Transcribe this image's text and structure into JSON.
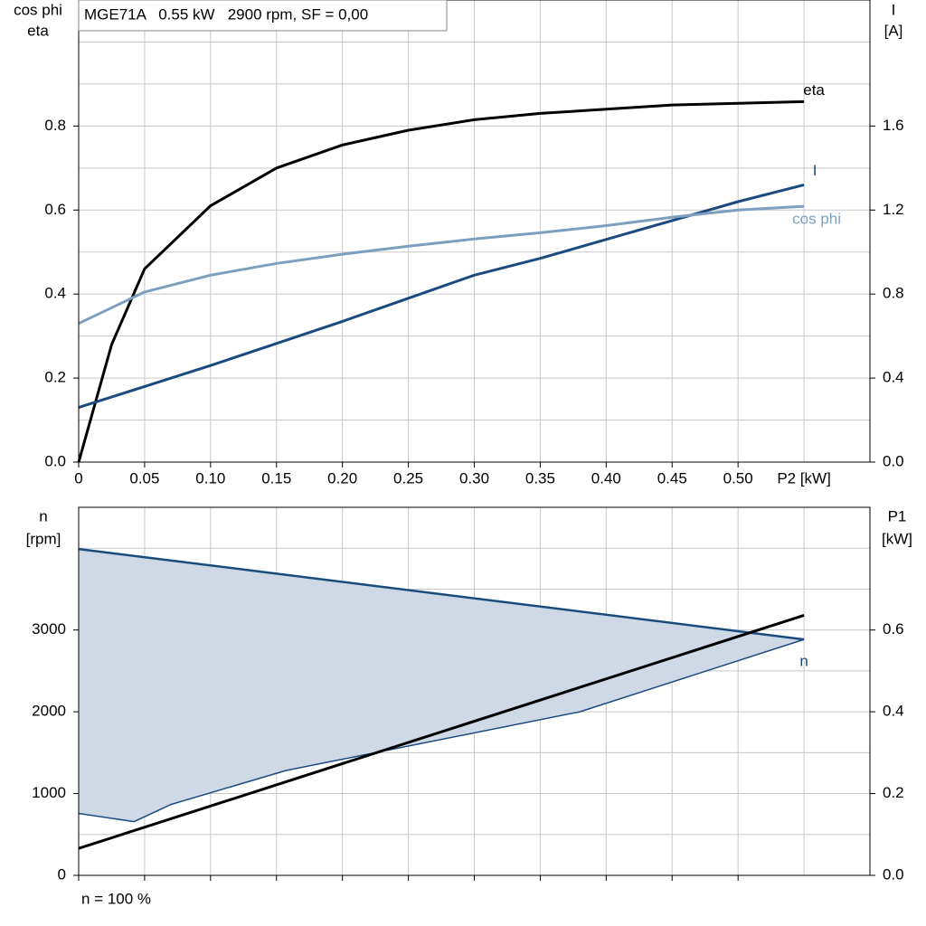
{
  "chart_data": [
    {
      "type": "line",
      "info_box": "MGE71A   0.55 kW   2900 rpm, SF = 0,00",
      "y_label_lines": [
        "cos phi",
        "eta"
      ],
      "y2_label_lines": [
        "I",
        "[A]"
      ],
      "x_label": "P2 [kW]",
      "xlim": [
        0,
        0.6
      ],
      "xticks": [
        0,
        0.05,
        {
          "value": 0.1,
          "label": "0.10"
        },
        0.15,
        {
          "value": 0.2,
          "label": "0.20"
        },
        0.25,
        {
          "value": 0.3,
          "label": "0.30"
        },
        0.35,
        {
          "value": 0.4,
          "label": "0.40"
        },
        0.45,
        {
          "value": 0.5,
          "label": "0.50"
        }
      ],
      "ylim": [
        0,
        1.1
      ],
      "yticks": [
        {
          "value": 0,
          "label": "0.0"
        },
        0.2,
        0.4,
        0.6,
        0.8
      ],
      "y2lim": [
        0,
        2.2
      ],
      "y2ticks": [
        {
          "value": 0,
          "label": "0.0"
        },
        0.4,
        0.8,
        1.2,
        1.6
      ],
      "grid": true,
      "series": [
        {
          "name": "eta",
          "color": "#000000",
          "x": [
            0,
            0.025,
            0.05,
            0.1,
            0.15,
            0.2,
            0.25,
            0.3,
            0.35,
            0.4,
            0.45,
            0.5,
            0.55
          ],
          "values": [
            0,
            0.28,
            0.46,
            0.61,
            0.7,
            0.755,
            0.79,
            0.815,
            0.83,
            0.84,
            0.85,
            0.854,
            0.858
          ]
        },
        {
          "name": "I",
          "color": "#1a4a80",
          "axis": "y2",
          "x": [
            0,
            0.05,
            0.1,
            0.15,
            0.2,
            0.25,
            0.3,
            0.35,
            0.4,
            0.45,
            0.5,
            0.55
          ],
          "values": [
            0.26,
            0.36,
            0.46,
            0.565,
            0.67,
            0.78,
            0.89,
            0.97,
            1.06,
            1.15,
            1.24,
            1.32
          ]
        },
        {
          "name": "cos phi",
          "color": "#7d9fbf",
          "x": [
            0,
            0.05,
            0.1,
            0.15,
            0.2,
            0.25,
            0.3,
            0.35,
            0.4,
            0.45,
            0.5,
            0.55
          ],
          "values": [
            0.33,
            0.405,
            0.445,
            0.473,
            0.495,
            0.514,
            0.531,
            0.546,
            0.563,
            0.583,
            0.6,
            0.609
          ]
        }
      ]
    },
    {
      "type": "range",
      "y_label_lines": [
        "n",
        "[rpm]"
      ],
      "y2_label_lines": [
        "P1",
        "[kW]"
      ],
      "note": "n = 100 %",
      "xlim": [
        0,
        0.6
      ],
      "xticks": [
        0,
        0.05,
        0.1,
        0.15,
        0.2,
        0.25,
        0.3,
        0.35,
        0.4,
        0.45,
        0.5
      ],
      "ylim": [
        0,
        4500
      ],
      "yticks": [
        0,
        1000,
        2000,
        3000
      ],
      "y2lim": [
        0,
        0.9
      ],
      "y2ticks": [
        {
          "value": 0,
          "label": "0.0"
        },
        0.2,
        0.4,
        0.6
      ],
      "grid": true,
      "series": [
        {
          "name": "n",
          "color": "#1a4a80",
          "fill": "#cfd9e5",
          "x_upper": [
            0,
            0.55
          ],
          "upper": [
            3990,
            2885
          ],
          "x_lower": [
            0,
            0.042,
            0.07,
            0.157,
            0.38,
            0.55
          ],
          "lower": [
            757,
            657,
            867,
            1282,
            2000,
            2885
          ]
        },
        {
          "color": "#000000",
          "axis": "y2",
          "x": [
            0,
            0.55
          ],
          "values": [
            0.066,
            0.636
          ]
        }
      ]
    }
  ]
}
